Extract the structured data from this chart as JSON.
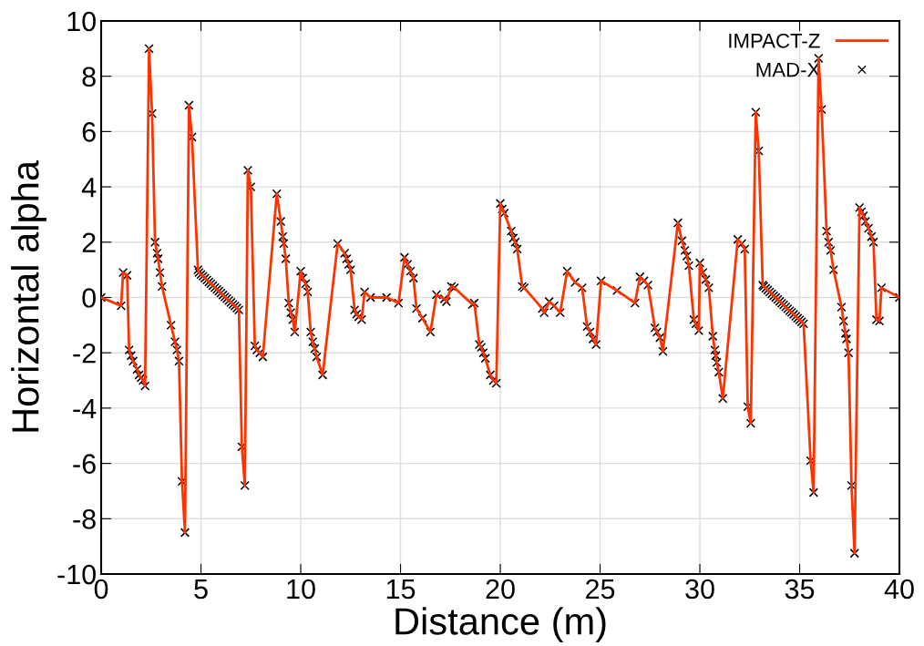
{
  "chart_data": {
    "type": "line",
    "xlabel": "Distance (m)",
    "ylabel": "Horizontal alpha",
    "x": [
      0,
      1.0,
      1.1,
      1.3,
      1.4,
      1.5,
      1.6,
      1.8,
      1.9,
      2.0,
      2.1,
      2.2,
      2.4,
      2.55,
      2.7,
      2.8,
      2.85,
      2.95,
      3.05,
      3.5,
      3.7,
      3.8,
      3.9,
      4.05,
      4.2,
      4.4,
      4.55,
      4.85,
      4.9,
      5.0,
      5.1,
      5.2,
      5.3,
      5.4,
      5.5,
      5.6,
      5.7,
      5.8,
      5.9,
      6.0,
      6.1,
      6.2,
      6.3,
      6.4,
      6.5,
      6.6,
      6.7,
      6.8,
      6.9,
      7.05,
      7.2,
      7.35,
      7.5,
      7.7,
      7.8,
      7.95,
      8.1,
      8.8,
      9.0,
      9.1,
      9.15,
      9.25,
      9.4,
      9.5,
      9.6,
      9.7,
      10.0,
      10.1,
      10.25,
      10.35,
      10.5,
      10.6,
      10.7,
      10.8,
      11.1,
      11.85,
      12.2,
      12.3,
      12.4,
      12.5,
      12.7,
      12.8,
      12.9,
      13.05,
      13.2,
      13.5,
      14.3,
      14.9,
      15.2,
      15.35,
      15.5,
      15.65,
      15.8,
      16.1,
      16.5,
      16.8,
      17.2,
      17.3,
      17.55,
      17.7,
      18.6,
      18.7,
      18.95,
      19.05,
      19.15,
      19.25,
      19.5,
      19.65,
      19.8,
      20.0,
      20.1,
      20.2,
      20.55,
      20.65,
      20.75,
      20.85,
      21.1,
      21.2,
      22.1,
      22.2,
      22.45,
      22.7,
      23.0,
      23.35,
      23.75,
      24.1,
      24.35,
      24.5,
      24.65,
      24.8,
      25.05,
      25.85,
      26.75,
      27.0,
      27.2,
      27.4,
      27.75,
      27.85,
      28.0,
      28.15,
      28.9,
      29.1,
      29.25,
      29.35,
      29.45,
      29.7,
      29.8,
      29.95,
      30.0,
      30.15,
      30.3,
      30.45,
      30.65,
      30.75,
      30.8,
      30.85,
      30.95,
      31.15,
      31.9,
      32.1,
      32.25,
      32.4,
      32.55,
      32.8,
      32.95,
      33.15,
      33.2,
      33.3,
      33.4,
      33.5,
      33.6,
      33.7,
      33.8,
      33.9,
      34.0,
      34.1,
      34.2,
      34.3,
      34.4,
      34.5,
      34.6,
      34.7,
      34.8,
      34.9,
      35.0,
      35.1,
      35.2,
      35.55,
      35.7,
      35.95,
      36.1,
      36.35,
      36.45,
      36.55,
      36.7,
      37.1,
      37.2,
      37.3,
      37.35,
      37.45,
      37.6,
      37.75,
      38.0,
      38.1,
      38.2,
      38.3,
      38.45,
      38.6,
      38.7,
      38.85,
      39.0,
      39.1,
      40.0
    ],
    "series": [
      {
        "name": "IMPACT-Z",
        "color": "#ff3300",
        "marker": "none",
        "line_style": "solid",
        "values": [
          0,
          -0.3,
          0.9,
          0.8,
          -1.9,
          -2.1,
          -2.3,
          -2.6,
          -2.8,
          -2.9,
          -3.0,
          -3.2,
          9.0,
          6.65,
          2.0,
          1.6,
          1.4,
          0.9,
          0.4,
          -1.0,
          -1.6,
          -1.9,
          -2.3,
          -6.65,
          -8.5,
          6.95,
          5.8,
          1.0,
          0.9,
          0.83,
          0.77,
          0.7,
          0.63,
          0.56,
          0.5,
          0.43,
          0.36,
          0.29,
          0.23,
          0.16,
          0.09,
          0.02,
          -0.04,
          -0.11,
          -0.18,
          -0.25,
          -0.31,
          -0.38,
          -0.45,
          -5.4,
          -6.8,
          4.6,
          4.0,
          -1.75,
          -1.9,
          -2.0,
          -2.15,
          3.75,
          2.75,
          2.2,
          1.95,
          1.4,
          -0.2,
          -0.55,
          -0.8,
          -1.25,
          0.95,
          0.7,
          0.5,
          0.2,
          -1.25,
          -1.6,
          -1.85,
          -2.15,
          -2.8,
          1.95,
          1.6,
          1.4,
          1.2,
          1.0,
          -0.45,
          -0.6,
          -0.7,
          -0.8,
          0.2,
          0.0,
          0.0,
          -0.2,
          1.45,
          1.2,
          0.95,
          0.7,
          -0.4,
          -0.75,
          -1.25,
          0.1,
          -0.05,
          -0.15,
          0.4,
          0.35,
          -0.25,
          -0.2,
          -1.7,
          -1.8,
          -2.0,
          -2.2,
          -2.8,
          -3.0,
          -3.1,
          3.4,
          3.2,
          3.05,
          2.4,
          2.15,
          2.0,
          1.75,
          0.4,
          0.35,
          -0.4,
          -0.55,
          -0.15,
          -0.3,
          -0.55,
          0.95,
          0.55,
          0.35,
          -1.05,
          -1.25,
          -1.5,
          -1.7,
          0.6,
          0.25,
          -0.2,
          0.75,
          0.6,
          0.45,
          -1.1,
          -1.25,
          -1.45,
          -1.95,
          2.7,
          2.05,
          1.7,
          1.5,
          1.15,
          -0.8,
          -0.95,
          -1.2,
          1.25,
          0.9,
          0.65,
          0.35,
          -1.4,
          -1.9,
          -2.1,
          -2.35,
          -2.7,
          -3.65,
          2.1,
          1.95,
          1.75,
          -3.95,
          -4.55,
          6.7,
          5.3,
          0.45,
          0.4,
          0.33,
          0.27,
          0.2,
          0.13,
          0.06,
          0,
          -0.07,
          -0.14,
          -0.21,
          -0.27,
          -0.34,
          -0.41,
          -0.48,
          -0.54,
          -0.61,
          -0.68,
          -0.75,
          -0.81,
          -0.88,
          -0.95,
          -5.9,
          -7.05,
          8.65,
          6.8,
          2.4,
          2.0,
          1.7,
          1.0,
          -0.35,
          -0.85,
          -1.3,
          -1.5,
          -2.0,
          -6.8,
          -9.25,
          3.25,
          3.1,
          2.95,
          2.75,
          2.5,
          2.2,
          2.0,
          -0.8,
          -0.85,
          0.35,
          0.0
        ]
      },
      {
        "name": "MAD-X",
        "type": "scatter",
        "color": "#000000",
        "marker": "cross",
        "values": [
          0,
          -0.3,
          0.9,
          0.8,
          -1.9,
          -2.1,
          -2.3,
          -2.6,
          -2.8,
          -2.9,
          -3.0,
          -3.2,
          9.0,
          6.65,
          2.0,
          1.6,
          1.4,
          0.9,
          0.4,
          -1.0,
          -1.6,
          -1.9,
          -2.3,
          -6.65,
          -8.5,
          6.95,
          5.8,
          1.0,
          0.9,
          0.83,
          0.77,
          0.7,
          0.63,
          0.56,
          0.5,
          0.43,
          0.36,
          0.29,
          0.23,
          0.16,
          0.09,
          0.02,
          -0.04,
          -0.11,
          -0.18,
          -0.25,
          -0.31,
          -0.38,
          -0.45,
          -5.4,
          -6.8,
          4.6,
          4.0,
          -1.75,
          -1.9,
          -2.0,
          -2.15,
          3.75,
          2.75,
          2.2,
          1.95,
          1.4,
          -0.2,
          -0.55,
          -0.8,
          -1.25,
          0.95,
          0.7,
          0.5,
          0.2,
          -1.25,
          -1.6,
          -1.85,
          -2.15,
          -2.8,
          1.95,
          1.6,
          1.4,
          1.2,
          1.0,
          -0.45,
          -0.6,
          -0.7,
          -0.8,
          0.2,
          0.0,
          0.0,
          -0.2,
          1.45,
          1.2,
          0.95,
          0.7,
          -0.4,
          -0.75,
          -1.25,
          0.1,
          -0.05,
          -0.15,
          0.4,
          0.35,
          -0.25,
          -0.2,
          -1.7,
          -1.8,
          -2.0,
          -2.2,
          -2.8,
          -3.0,
          -3.1,
          3.4,
          3.2,
          3.05,
          2.4,
          2.15,
          2.0,
          1.75,
          0.4,
          0.35,
          -0.4,
          -0.55,
          -0.15,
          -0.3,
          -0.55,
          0.95,
          0.55,
          0.35,
          -1.05,
          -1.25,
          -1.5,
          -1.7,
          0.6,
          0.25,
          -0.2,
          0.75,
          0.6,
          0.45,
          -1.1,
          -1.25,
          -1.45,
          -1.95,
          2.7,
          2.05,
          1.7,
          1.5,
          1.15,
          -0.8,
          -0.95,
          -1.2,
          1.25,
          0.9,
          0.65,
          0.35,
          -1.4,
          -1.9,
          -2.1,
          -2.35,
          -2.7,
          -3.65,
          2.1,
          1.95,
          1.75,
          -3.95,
          -4.55,
          6.7,
          5.3,
          0.45,
          0.4,
          0.33,
          0.27,
          0.2,
          0.13,
          0.06,
          0,
          -0.07,
          -0.14,
          -0.21,
          -0.27,
          -0.34,
          -0.41,
          -0.48,
          -0.54,
          -0.61,
          -0.68,
          -0.75,
          -0.81,
          -0.88,
          -0.95,
          -5.9,
          -7.05,
          8.65,
          6.8,
          2.4,
          2.0,
          1.7,
          1.0,
          -0.35,
          -0.85,
          -1.3,
          -1.5,
          -2.0,
          -6.8,
          -9.25,
          3.25,
          3.1,
          2.95,
          2.75,
          2.5,
          2.2,
          2.0,
          -0.8,
          -0.85,
          0.35,
          0.0
        ]
      }
    ],
    "xlim": [
      0,
      40
    ],
    "xticks": [
      0,
      5,
      10,
      15,
      20,
      25,
      30,
      35,
      40
    ],
    "ylim": [
      -10,
      10
    ],
    "yticks": [
      -10,
      -8,
      -6,
      -4,
      -2,
      0,
      2,
      4,
      6,
      8,
      10
    ],
    "grid": true,
    "legend": "top right"
  }
}
